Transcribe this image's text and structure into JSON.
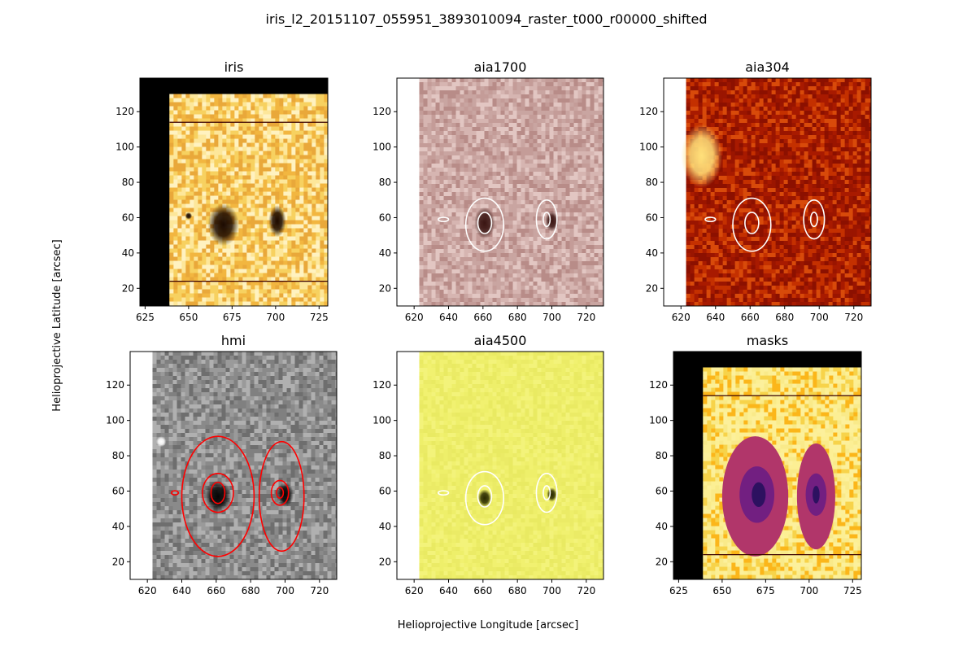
{
  "figure": {
    "suptitle": "iris_l2_20151107_055951_3893010094_raster_t000_r00000_shifted",
    "xlabel": "Helioprojective Longitude [arcsec]",
    "ylabel": "Helioprojective Latitude [arcsec]"
  },
  "colors": {
    "contour_white": "#ffffff",
    "contour_red": "#ff0000",
    "axis": "#000000"
  },
  "chart_data": [
    {
      "type": "heatmap",
      "title": "iris",
      "colormap": "yellow-orange-brown",
      "xlim": [
        622,
        730
      ],
      "ylim": [
        10,
        139
      ],
      "xticks": [
        "625",
        "650",
        "675",
        "700",
        "725"
      ],
      "yticks": [
        "20",
        "40",
        "60",
        "80",
        "100",
        "120"
      ],
      "image_extent": {
        "x": [
          639,
          730
        ],
        "y": [
          11,
          130
        ]
      },
      "blank_background": "#000000",
      "horizontal_lines_y": [
        24,
        114
      ],
      "features": [
        {
          "kind": "dark-spot",
          "x": 670,
          "y": 56,
          "rx": 9,
          "ry": 12
        },
        {
          "kind": "dark-spot",
          "x": 701,
          "y": 58,
          "rx": 5,
          "ry": 9
        },
        {
          "kind": "dark-spot",
          "x": 650,
          "y": 61,
          "rx": 2,
          "ry": 2
        }
      ],
      "contours": []
    },
    {
      "type": "heatmap",
      "title": "aia1700",
      "colormap": "pink-brown",
      "xlim": [
        610,
        730
      ],
      "ylim": [
        10,
        139
      ],
      "xticks": [
        "620",
        "640",
        "660",
        "680",
        "700",
        "720"
      ],
      "yticks": [
        "20",
        "40",
        "60",
        "80",
        "100",
        "120"
      ],
      "image_extent": {
        "x": [
          623,
          730
        ],
        "y": [
          10,
          139
        ]
      },
      "blank_background": "#ffffff",
      "horizontal_lines_y": [],
      "features": [
        {
          "kind": "dark-spot",
          "x": 661,
          "y": 57,
          "rx": 6,
          "ry": 9
        },
        {
          "kind": "dark-spot",
          "x": 700,
          "y": 58,
          "rx": 4,
          "ry": 6
        }
      ],
      "contours": [
        {
          "color": "white",
          "x": 661,
          "y": 56,
          "rx": 11,
          "ry": 15
        },
        {
          "color": "white",
          "x": 661,
          "y": 57,
          "rx": 4,
          "ry": 6
        },
        {
          "color": "white",
          "x": 697,
          "y": 59,
          "rx": 6,
          "ry": 11
        },
        {
          "color": "white",
          "x": 697,
          "y": 59,
          "rx": 2,
          "ry": 4
        },
        {
          "color": "white",
          "x": 637,
          "y": 59,
          "rx": 3,
          "ry": 1.2
        }
      ]
    },
    {
      "type": "heatmap",
      "title": "aia304",
      "colormap": "red-hot",
      "xlim": [
        610,
        730
      ],
      "ylim": [
        10,
        139
      ],
      "xticks": [
        "620",
        "640",
        "660",
        "680",
        "700",
        "720"
      ],
      "yticks": [
        "20",
        "40",
        "60",
        "80",
        "100",
        "120"
      ],
      "image_extent": {
        "x": [
          623,
          730
        ],
        "y": [
          10,
          139
        ]
      },
      "blank_background": "#ffffff",
      "horizontal_lines_y": [],
      "features": [
        {
          "kind": "bright-spot",
          "x": 632,
          "y": 95,
          "rx": 12,
          "ry": 18
        }
      ],
      "contours": [
        {
          "color": "white",
          "x": 661,
          "y": 56,
          "rx": 11,
          "ry": 15
        },
        {
          "color": "white",
          "x": 661,
          "y": 57,
          "rx": 4,
          "ry": 6
        },
        {
          "color": "white",
          "x": 697,
          "y": 59,
          "rx": 6,
          "ry": 11
        },
        {
          "color": "white",
          "x": 697,
          "y": 59,
          "rx": 2,
          "ry": 4
        },
        {
          "color": "white",
          "x": 637,
          "y": 59,
          "rx": 3,
          "ry": 1.2
        }
      ]
    },
    {
      "type": "heatmap",
      "title": "hmi",
      "colormap": "grayscale",
      "xlim": [
        610,
        730
      ],
      "ylim": [
        10,
        139
      ],
      "xticks": [
        "620",
        "640",
        "660",
        "680",
        "700",
        "720"
      ],
      "yticks": [
        "20",
        "40",
        "60",
        "80",
        "100",
        "120"
      ],
      "image_extent": {
        "x": [
          623,
          730
        ],
        "y": [
          10,
          139
        ]
      },
      "blank_background": "#ffffff",
      "horizontal_lines_y": [],
      "features": [
        {
          "kind": "dark-spot",
          "x": 661,
          "y": 57,
          "rx": 8,
          "ry": 9
        },
        {
          "kind": "dark-spot",
          "x": 700,
          "y": 58,
          "rx": 5,
          "ry": 7
        },
        {
          "kind": "bright-spot",
          "x": 628,
          "y": 88,
          "rx": 3,
          "ry": 3
        }
      ],
      "contours": [
        {
          "color": "red",
          "x": 661,
          "y": 57,
          "rx": 21,
          "ry": 34
        },
        {
          "color": "red",
          "x": 698,
          "y": 57,
          "rx": 13,
          "ry": 31
        },
        {
          "color": "red",
          "x": 661,
          "y": 59,
          "rx": 9,
          "ry": 11
        },
        {
          "color": "red",
          "x": 661,
          "y": 59,
          "rx": 4,
          "ry": 6
        },
        {
          "color": "red",
          "x": 697,
          "y": 59,
          "rx": 5,
          "ry": 7
        },
        {
          "color": "red",
          "x": 697,
          "y": 59,
          "rx": 2,
          "ry": 3
        },
        {
          "color": "red",
          "x": 636,
          "y": 59,
          "rx": 2,
          "ry": 1.2
        }
      ]
    },
    {
      "type": "heatmap",
      "title": "aia4500",
      "colormap": "pale-yellow",
      "xlim": [
        610,
        730
      ],
      "ylim": [
        10,
        139
      ],
      "xticks": [
        "620",
        "640",
        "660",
        "680",
        "700",
        "720"
      ],
      "yticks": [
        "20",
        "40",
        "60",
        "80",
        "100",
        "120"
      ],
      "image_extent": {
        "x": [
          623,
          730
        ],
        "y": [
          10,
          139
        ]
      },
      "blank_background": "#ffffff",
      "horizontal_lines_y": [],
      "features": [
        {
          "kind": "dark-spot",
          "x": 661,
          "y": 56,
          "rx": 4,
          "ry": 5
        },
        {
          "kind": "dark-spot",
          "x": 700,
          "y": 58,
          "rx": 3,
          "ry": 4
        }
      ],
      "contours": [
        {
          "color": "white",
          "x": 661,
          "y": 56,
          "rx": 11,
          "ry": 15
        },
        {
          "color": "white",
          "x": 661,
          "y": 57,
          "rx": 4,
          "ry": 6
        },
        {
          "color": "white",
          "x": 697,
          "y": 59,
          "rx": 6,
          "ry": 11
        },
        {
          "color": "white",
          "x": 697,
          "y": 59,
          "rx": 2,
          "ry": 4
        },
        {
          "color": "white",
          "x": 637,
          "y": 59,
          "rx": 3,
          "ry": 1.2
        }
      ]
    },
    {
      "type": "heatmap",
      "title": "masks",
      "colormap": "inferno-mask",
      "xlim": [
        622,
        730
      ],
      "ylim": [
        10,
        139
      ],
      "xticks": [
        "625",
        "650",
        "675",
        "700",
        "725"
      ],
      "yticks": [
        "20",
        "40",
        "60",
        "80",
        "100",
        "120"
      ],
      "image_extent": {
        "x": [
          639,
          730
        ],
        "y": [
          11,
          130
        ]
      },
      "blank_background": "#000000",
      "horizontal_lines_y": [
        24,
        114
      ],
      "mask_regions": [
        {
          "level": "outer",
          "x": 669,
          "y": 57,
          "rx": 19,
          "ry": 34
        },
        {
          "level": "outer",
          "x": 704,
          "y": 57,
          "rx": 11,
          "ry": 30
        },
        {
          "level": "mid",
          "x": 670,
          "y": 58,
          "rx": 10,
          "ry": 16
        },
        {
          "level": "mid",
          "x": 704,
          "y": 58,
          "rx": 6,
          "ry": 12
        },
        {
          "level": "core",
          "x": 671,
          "y": 58,
          "rx": 4,
          "ry": 7
        },
        {
          "level": "core",
          "x": 704,
          "y": 58,
          "rx": 2,
          "ry": 5
        }
      ],
      "features": [],
      "contours": []
    }
  ]
}
